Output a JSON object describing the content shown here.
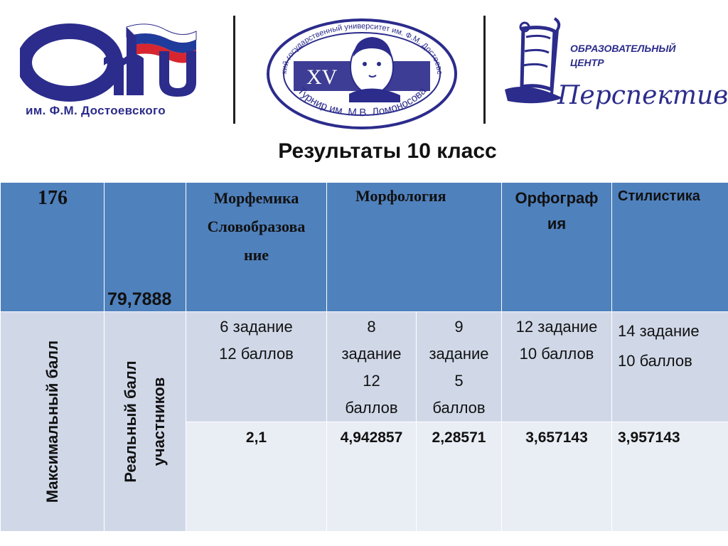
{
  "logos": {
    "omgu": {
      "caption": "им. Ф.М. Достоевского",
      "letters": "ОмГУ",
      "colors": {
        "brand_blue": "#2c2c8c",
        "flag_red": "#d7262f",
        "flag_blue": "#1f3c9c"
      }
    },
    "lomonosov": {
      "roman_numeral": "XV",
      "top_arc": "Омский государственный университет им. Ф.М. Достоевского",
      "bottom_arc": "Турнир им. М.В. Ломоносова"
    },
    "perspektiva": {
      "line1": "ОБРАЗОВАТЕЛЬНЫЙ",
      "line2": "ЦЕНТР",
      "brand": "Перспектива"
    }
  },
  "title": "Результаты 10 класс",
  "table": {
    "header": {
      "count": "176",
      "average": "79,7888",
      "col_morfemika": [
        "Морфемика",
        "Словобразова",
        "ние"
      ],
      "col_morfologiya": "Морфология",
      "col_orfografiya": [
        "Орфограф",
        "ия"
      ],
      "col_stilistika": "Стилистика"
    },
    "side_labels": {
      "max": "Максимальный балл",
      "real": [
        "Реальный балл",
        "участников"
      ]
    },
    "tasks": [
      [
        "6 задание",
        "12  баллов"
      ],
      [
        "8",
        "задание",
        "12",
        "баллов"
      ],
      [
        "9",
        "задание",
        "5",
        "баллов"
      ],
      [
        "12 задание",
        "10 баллов"
      ],
      [
        "14 задание",
        "10 баллов"
      ]
    ],
    "values": [
      "2,1",
      "4,942857",
      "2,28571",
      "3,657143",
      "3,957143"
    ],
    "colors": {
      "header_bg": "#4f81bd",
      "row_bg": "#d0d8e8",
      "row_alt_bg": "#e9edf4"
    }
  }
}
